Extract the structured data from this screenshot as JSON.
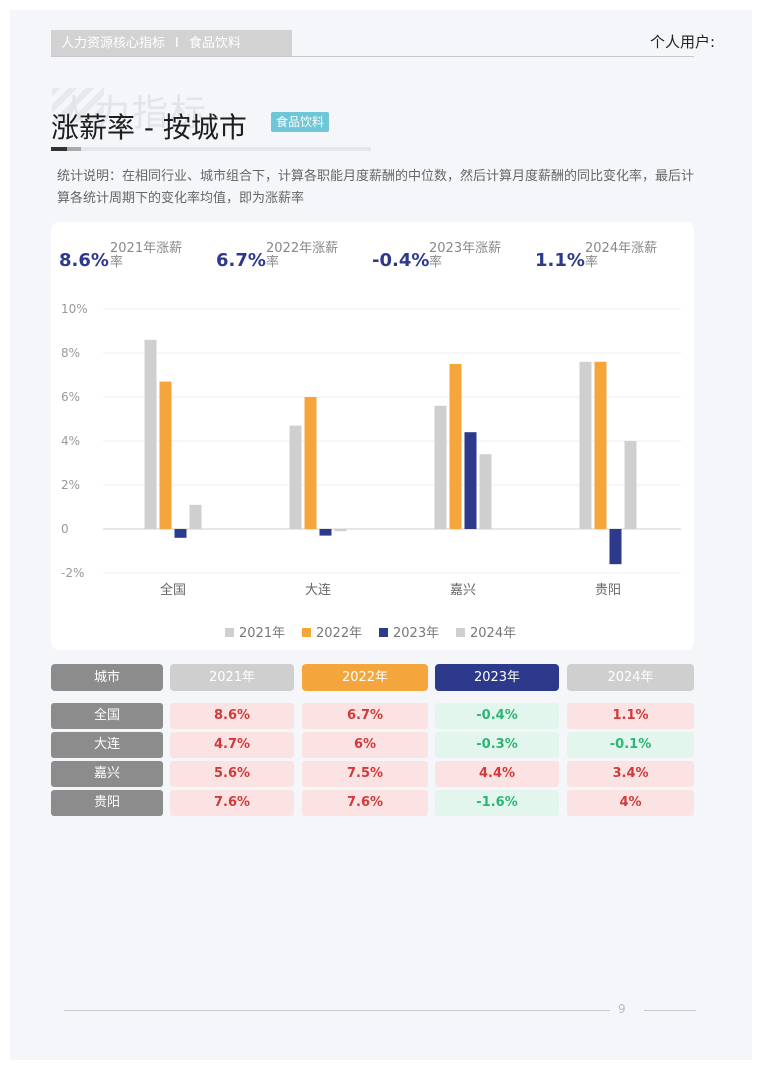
{
  "header": {
    "tag": "人力资源核心指标",
    "separator": "I",
    "industry": "食品饮料",
    "user": "个人用户:"
  },
  "title": {
    "watermark": "人力指标",
    "main": "涨薪率 - 按城市",
    "badge": "食品饮料"
  },
  "description": "统计说明：在相同行业、城市组合下，计算各职能月度薪酬的中位数，然后计算月度薪酬的同比变化率，最后计算各统计周期下的变化率均值，即为涨薪率",
  "kpis": [
    {
      "value": "8.6%",
      "label": "2021年涨薪率"
    },
    {
      "value": "6.7%",
      "label": "2022年涨薪率"
    },
    {
      "value": "-0.4%",
      "label": "2023年涨薪率"
    },
    {
      "value": "1.1%",
      "label": "2024年涨薪率"
    }
  ],
  "chart_data": {
    "type": "bar",
    "categories": [
      "全国",
      "大连",
      "嘉兴",
      "贵阳"
    ],
    "series": [
      {
        "name": "2021年",
        "color": "#cfcfcf",
        "values": [
          8.6,
          4.7,
          5.6,
          7.6
        ]
      },
      {
        "name": "2022年",
        "color": "#f4a63c",
        "values": [
          6.7,
          6.0,
          7.5,
          7.6
        ]
      },
      {
        "name": "2023年",
        "color": "#2d3a8c",
        "values": [
          -0.4,
          -0.3,
          4.4,
          -1.6
        ]
      },
      {
        "name": "2024年",
        "color": "#cfcfcf",
        "values": [
          1.1,
          -0.1,
          3.4,
          4.0
        ]
      }
    ],
    "yticks": [
      "10%",
      "8%",
      "6%",
      "4%",
      "2%",
      "0",
      "-2%"
    ],
    "ylim": [
      -2,
      10
    ],
    "grid": true,
    "legend": "bottom"
  },
  "table": {
    "headers": [
      {
        "label": "城市",
        "color": "#8c8c8c"
      },
      {
        "label": "2021年",
        "color": "#cfcfcf"
      },
      {
        "label": "2022年",
        "color": "#f4a63c"
      },
      {
        "label": "2023年",
        "color": "#2d3a8c"
      },
      {
        "label": "2024年",
        "color": "#cfcfcf"
      }
    ],
    "rows": [
      {
        "city": "全国",
        "values": [
          "8.6%",
          "6.7%",
          "-0.4%",
          "1.1%"
        ]
      },
      {
        "city": "大连",
        "values": [
          "4.7%",
          "6%",
          "-0.3%",
          "-0.1%"
        ]
      },
      {
        "city": "嘉兴",
        "values": [
          "5.6%",
          "7.5%",
          "4.4%",
          "3.4%"
        ]
      },
      {
        "city": "贵阳",
        "values": [
          "7.6%",
          "7.6%",
          "-1.6%",
          "4%"
        ]
      }
    ]
  },
  "footer": {
    "page": "9"
  }
}
